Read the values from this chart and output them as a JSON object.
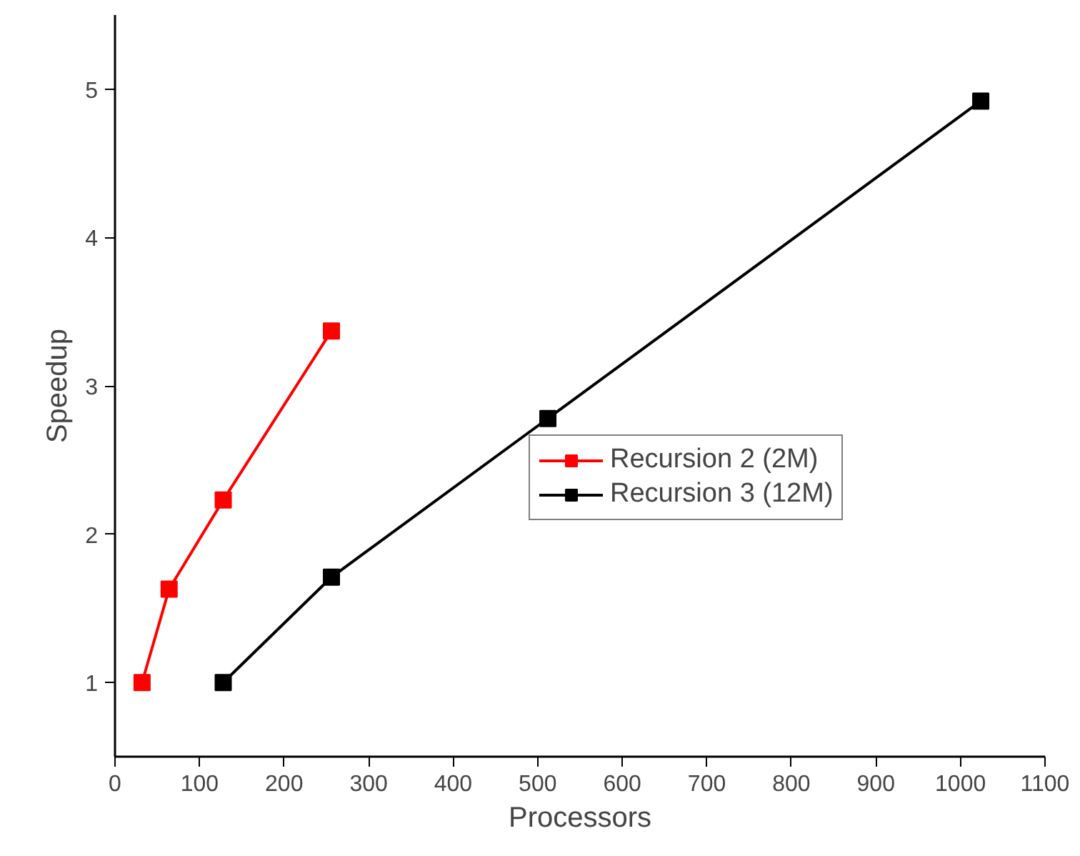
{
  "chart_data": {
    "type": "line",
    "xlabel": "Processors",
    "ylabel": "Speedup",
    "xlim": [
      0,
      1100
    ],
    "ylim": [
      0.5,
      5.5
    ],
    "xticks": [
      0,
      100,
      200,
      300,
      400,
      500,
      600,
      700,
      800,
      900,
      1000,
      1100
    ],
    "yticks": [
      1,
      2,
      3,
      4,
      5
    ],
    "marker": "square",
    "grid": false,
    "legend": "right",
    "series": [
      {
        "name": "Recursion 2 (2M)",
        "color": "#ff0000",
        "x": [
          32,
          64,
          128,
          256
        ],
        "values": [
          1,
          1.63,
          2.23,
          3.37
        ]
      },
      {
        "name": "Recursion 3 (12M)",
        "color": "#000000",
        "x": [
          128,
          256,
          512,
          1024
        ],
        "values": [
          1,
          1.71,
          2.78,
          4.92
        ]
      }
    ]
  }
}
